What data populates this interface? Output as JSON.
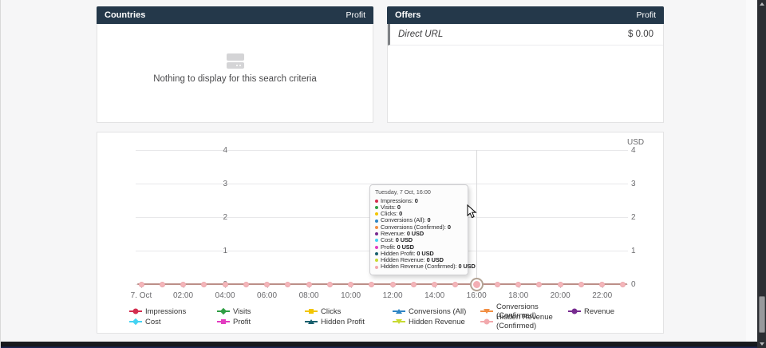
{
  "panels": {
    "countries": {
      "title": "Countries",
      "metric": "Profit",
      "empty_text": "Nothing to display for this search criteria"
    },
    "offers": {
      "title": "Offers",
      "metric": "Profit",
      "rows": [
        {
          "label": "Direct URL",
          "value": "$ 0.00"
        }
      ]
    }
  },
  "chart_data": {
    "type": "line",
    "title": "",
    "unit_label": "USD",
    "x_axis": {
      "date": "7 Oct",
      "points": 24,
      "tick_labels": [
        "7. Oct",
        "02:00",
        "04:00",
        "06:00",
        "08:00",
        "10:00",
        "12:00",
        "14:00",
        "16:00",
        "18:00",
        "20:00",
        "22:00"
      ],
      "tick_every_hours": 2
    },
    "y_axis": {
      "ticks": [
        4,
        3,
        2,
        1,
        0
      ],
      "range": [
        0,
        4
      ],
      "mirrored_right": true,
      "grid": true
    },
    "plot_line_color": "#bc8f88",
    "plot_marker_color": "#f4b6ba",
    "crosshair_color": "#d9d9db",
    "highlight": {
      "index": 16,
      "label": "16:00"
    },
    "series": [
      {
        "name": "Impressions",
        "color": "#d32d4e",
        "marker": "circle",
        "values": [
          0,
          0,
          0,
          0,
          0,
          0,
          0,
          0,
          0,
          0,
          0,
          0,
          0,
          0,
          0,
          0,
          0,
          0,
          0,
          0,
          0,
          0,
          0,
          0
        ]
      },
      {
        "name": "Visits",
        "color": "#2f9e44",
        "marker": "diamond",
        "values": [
          0,
          0,
          0,
          0,
          0,
          0,
          0,
          0,
          0,
          0,
          0,
          0,
          0,
          0,
          0,
          0,
          0,
          0,
          0,
          0,
          0,
          0,
          0,
          0
        ]
      },
      {
        "name": "Clicks",
        "color": "#f2c500",
        "marker": "square",
        "values": [
          0,
          0,
          0,
          0,
          0,
          0,
          0,
          0,
          0,
          0,
          0,
          0,
          0,
          0,
          0,
          0,
          0,
          0,
          0,
          0,
          0,
          0,
          0,
          0
        ]
      },
      {
        "name": "Conversions (All)",
        "color": "#2e85c4",
        "marker": "triangle",
        "values": [
          0,
          0,
          0,
          0,
          0,
          0,
          0,
          0,
          0,
          0,
          0,
          0,
          0,
          0,
          0,
          0,
          0,
          0,
          0,
          0,
          0,
          0,
          0,
          0
        ]
      },
      {
        "name": "Conversions (Confirmed)",
        "color": "#f28f43",
        "marker": "triangle-down",
        "values": [
          0,
          0,
          0,
          0,
          0,
          0,
          0,
          0,
          0,
          0,
          0,
          0,
          0,
          0,
          0,
          0,
          0,
          0,
          0,
          0,
          0,
          0,
          0,
          0
        ]
      },
      {
        "name": "Revenue",
        "color": "#772b90",
        "marker": "circle",
        "values": [
          0,
          0,
          0,
          0,
          0,
          0,
          0,
          0,
          0,
          0,
          0,
          0,
          0,
          0,
          0,
          0,
          0,
          0,
          0,
          0,
          0,
          0,
          0,
          0
        ]
      },
      {
        "name": "Cost",
        "color": "#45d3f2",
        "marker": "diamond",
        "values": [
          0,
          0,
          0,
          0,
          0,
          0,
          0,
          0,
          0,
          0,
          0,
          0,
          0,
          0,
          0,
          0,
          0,
          0,
          0,
          0,
          0,
          0,
          0,
          0
        ]
      },
      {
        "name": "Profit",
        "color": "#e23bc0",
        "marker": "square",
        "values": [
          0,
          0,
          0,
          0,
          0,
          0,
          0,
          0,
          0,
          0,
          0,
          0,
          0,
          0,
          0,
          0,
          0,
          0,
          0,
          0,
          0,
          0,
          0,
          0
        ]
      },
      {
        "name": "Hidden Profit",
        "color": "#185f6d",
        "marker": "triangle",
        "values": [
          0,
          0,
          0,
          0,
          0,
          0,
          0,
          0,
          0,
          0,
          0,
          0,
          0,
          0,
          0,
          0,
          0,
          0,
          0,
          0,
          0,
          0,
          0,
          0
        ]
      },
      {
        "name": "Hidden Revenue",
        "color": "#c8da33",
        "marker": "triangle-down",
        "values": [
          0,
          0,
          0,
          0,
          0,
          0,
          0,
          0,
          0,
          0,
          0,
          0,
          0,
          0,
          0,
          0,
          0,
          0,
          0,
          0,
          0,
          0,
          0,
          0
        ]
      },
      {
        "name": "Hidden Revenue (Confirmed)",
        "color": "#f2a9ad",
        "marker": "circle",
        "values": [
          0,
          0,
          0,
          0,
          0,
          0,
          0,
          0,
          0,
          0,
          0,
          0,
          0,
          0,
          0,
          0,
          0,
          0,
          0,
          0,
          0,
          0,
          0,
          0
        ]
      }
    ],
    "tooltip": {
      "title": "Tuesday, 7 Oct, 16:00",
      "rows": [
        {
          "label": "Impressions",
          "value": "0"
        },
        {
          "label": "Visits",
          "value": "0"
        },
        {
          "label": "Clicks",
          "value": "0"
        },
        {
          "label": "Conversions (All)",
          "value": "0"
        },
        {
          "label": "Conversions (Confirmed)",
          "value": "0"
        },
        {
          "label": "Revenue",
          "value": "0 USD"
        },
        {
          "label": "Cost",
          "value": "0 USD"
        },
        {
          "label": "Profit",
          "value": "0 USD"
        },
        {
          "label": "Hidden Profit",
          "value": "0 USD"
        },
        {
          "label": "Hidden Revenue",
          "value": "0 USD"
        },
        {
          "label": "Hidden Revenue (Confirmed)",
          "value": "0 USD"
        }
      ]
    }
  },
  "colors": {
    "header_bg": "#24384a",
    "page_bg": "#f6f6f7",
    "panel_border": "#e3e3e4",
    "offer_row_accent": "#7f8286"
  }
}
